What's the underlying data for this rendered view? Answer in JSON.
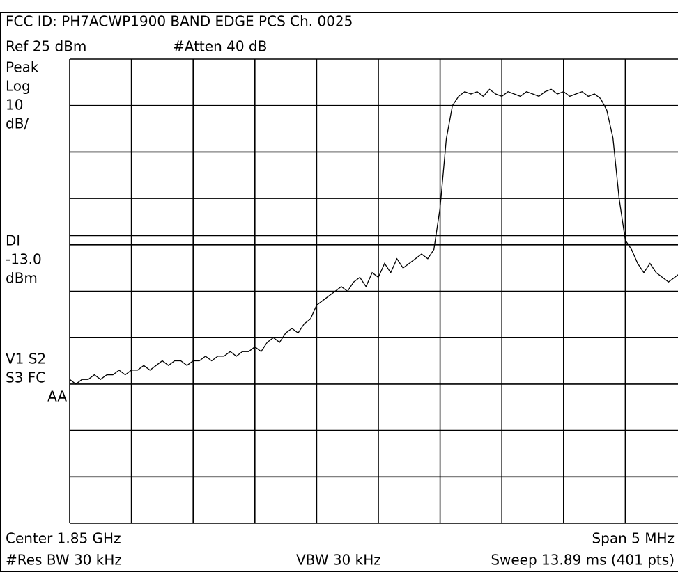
{
  "chart_data": {
    "type": "line",
    "title": "FCC ID: PH7ACWP1900  BAND EDGE PCS Ch. 0025",
    "ref_label": "Ref 25 dBm",
    "atten_label": "#Atten 40 dB",
    "side_labels": [
      "Peak",
      "Log",
      "10",
      "dB/"
    ],
    "display_line_label": "Dl",
    "display_line": {
      "value": -13,
      "label": "-13.0"
    },
    "display_line_unit": "dBm",
    "status_labels": [
      "V1  S2",
      "S3  FC",
      "AA"
    ],
    "center_label": "Center 1.85 GHz",
    "span_label": "Span 5 MHz",
    "rbw_label": "#Res BW 30 kHz",
    "vbw_label": "VBW 30 kHz",
    "sweep_label": "Sweep 13.89 ms (401 pts)",
    "ylim": [
      -75,
      25
    ],
    "yticks": [
      -75,
      -65,
      -55,
      -45,
      -35,
      -25,
      -15,
      -5,
      5,
      15,
      25
    ],
    "grid": true,
    "color": "#000000",
    "values": [
      -44,
      -45,
      -44,
      -44,
      -43,
      -44,
      -43,
      -43,
      -42,
      -43,
      -42,
      -42,
      -41,
      -42,
      -41,
      -40,
      -41,
      -40,
      -40,
      -41,
      -40,
      -40,
      -39,
      -40,
      -39,
      -39,
      -38,
      -39,
      -38,
      -38,
      -37,
      -38,
      -36,
      -35,
      -36,
      -34,
      -33,
      -34,
      -32,
      -31,
      -28,
      -27,
      -26,
      -25,
      -24,
      -25,
      -23,
      -22,
      -24,
      -21,
      -22,
      -19,
      -21,
      -18,
      -20,
      -19,
      -18,
      -17,
      -18,
      -16,
      -7,
      7.8,
      15,
      17,
      18,
      17.5,
      18,
      17,
      18.5,
      17.5,
      17,
      18,
      17.5,
      17,
      18,
      17.5,
      17,
      18,
      18.5,
      17.5,
      18,
      17,
      17.5,
      18,
      17,
      17.5,
      16.5,
      14,
      8,
      -5,
      -14,
      -16,
      -19,
      -21,
      -19,
      -21,
      -22,
      -23,
      -22,
      -21,
      -22
    ]
  }
}
